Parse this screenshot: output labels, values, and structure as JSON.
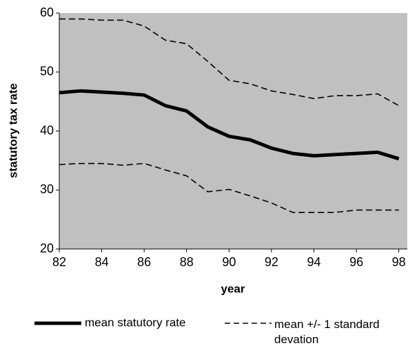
{
  "chart_data": {
    "type": "line",
    "xlabel": "year",
    "ylabel": "statutory tax rate",
    "x": [
      82,
      83,
      84,
      85,
      86,
      87,
      88,
      89,
      90,
      91,
      92,
      93,
      94,
      95,
      96,
      97,
      98
    ],
    "series": [
      {
        "name": "mean statutory rate",
        "color": "#000000",
        "style": "solid",
        "values": [
          46.5,
          46.8,
          46.6,
          46.4,
          46.1,
          44.3,
          43.4,
          40.7,
          39.1,
          38.5,
          37.1,
          36.2,
          35.8,
          36.0,
          36.2,
          36.4,
          35.3
        ]
      },
      {
        "name": "mean +/- 1 standard devation",
        "color": "#000000",
        "style": "dashed",
        "values": [
          59,
          59,
          58.8,
          58.8,
          57.8,
          55.4,
          54.8,
          51.8,
          48.6,
          48.0,
          46.8,
          46.2,
          45.5,
          46.0,
          46.0,
          46.3,
          44.3
        ]
      },
      {
        "color": "#000000",
        "style": "dashed",
        "values": [
          34.3,
          34.5,
          34.5,
          34.2,
          34.5,
          33.4,
          32.4,
          29.7,
          30.1,
          29.0,
          27.8,
          26.2,
          26.2,
          26.2,
          26.6,
          26.6,
          26.6
        ]
      }
    ],
    "xlim": [
      82,
      98.4
    ],
    "xticks": [
      82,
      84,
      86,
      88,
      90,
      92,
      94,
      96,
      98
    ],
    "ylim": [
      20,
      60
    ],
    "yticks": [
      20,
      30,
      40,
      50,
      60
    ],
    "background": "#c0c0c0"
  }
}
